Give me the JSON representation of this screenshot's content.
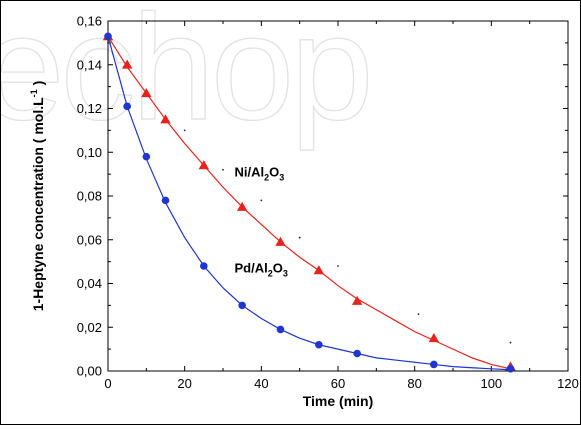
{
  "watermark": "echop",
  "chart_data": {
    "type": "scatter",
    "xlabel": "Time (min)",
    "ylabel_main": "1-Heptyne concentration ( mol.L",
    "ylabel_sup": "-1",
    "ylabel_end": ")",
    "xlim": [
      0,
      120
    ],
    "ylim": [
      0,
      0.16
    ],
    "x_ticks": [
      0,
      20,
      40,
      60,
      80,
      100,
      120
    ],
    "y_ticks": [
      0.0,
      0.02,
      0.04,
      0.06,
      0.08,
      0.1,
      0.12,
      0.14,
      0.16
    ],
    "x_tick_labels": [
      "0",
      "20",
      "40",
      "60",
      "80",
      "100",
      "120"
    ],
    "y_tick_labels": [
      "0,00",
      "0,02",
      "0,04",
      "0,06",
      "0,08",
      "0,10",
      "0,12",
      "0,14",
      "0,16"
    ],
    "grid": false,
    "series": [
      {
        "name": "Ni/Al2O3",
        "label_parts": [
          "Ni/Al",
          "2",
          "O",
          "3"
        ],
        "label_at": [
          33,
          0.089
        ],
        "color": "#e8221c",
        "marker": "triangle",
        "x": [
          0,
          5,
          10,
          15,
          25,
          35,
          45,
          55,
          65,
          85,
          105
        ],
        "y": [
          0.153,
          0.14,
          0.127,
          0.115,
          0.094,
          0.075,
          0.059,
          0.046,
          0.032,
          0.015,
          0.002
        ],
        "fit_x": [
          0,
          5,
          10,
          15,
          20,
          25,
          30,
          35,
          40,
          45,
          50,
          55,
          60,
          65,
          70,
          75,
          80,
          85,
          90,
          95,
          100,
          105
        ],
        "fit_y": [
          0.153,
          0.139,
          0.127,
          0.115,
          0.104,
          0.094,
          0.084,
          0.075,
          0.067,
          0.059,
          0.052,
          0.046,
          0.039,
          0.033,
          0.028,
          0.023,
          0.018,
          0.014,
          0.01,
          0.006,
          0.003,
          0.001
        ]
      },
      {
        "name": "Pd/Al2O3",
        "label_parts": [
          "Pd/Al",
          "2",
          "O",
          "3"
        ],
        "label_at": [
          33,
          0.045
        ],
        "color": "#1f36d0",
        "marker": "circle",
        "x": [
          0,
          5,
          10,
          15,
          25,
          35,
          45,
          55,
          65,
          85,
          105
        ],
        "y": [
          0.153,
          0.121,
          0.098,
          0.078,
          0.048,
          0.03,
          0.019,
          0.012,
          0.008,
          0.003,
          0.001
        ],
        "fit_x": [
          0,
          5,
          10,
          15,
          20,
          25,
          30,
          35,
          40,
          45,
          50,
          55,
          60,
          65,
          70,
          75,
          80,
          85,
          90,
          95,
          100,
          105
        ],
        "fit_y": [
          0.153,
          0.121,
          0.097,
          0.077,
          0.061,
          0.048,
          0.038,
          0.03,
          0.024,
          0.019,
          0.015,
          0.012,
          0.01,
          0.008,
          0.006,
          0.005,
          0.004,
          0.003,
          0.002,
          0.0015,
          0.001,
          0.0006
        ]
      }
    ],
    "dotted_reference": {
      "color": "#222222",
      "x": [
        0,
        20,
        30,
        40,
        50,
        60,
        81,
        105
      ],
      "y": [
        0.15,
        0.11,
        0.092,
        0.078,
        0.061,
        0.048,
        0.026,
        0.013
      ]
    }
  }
}
